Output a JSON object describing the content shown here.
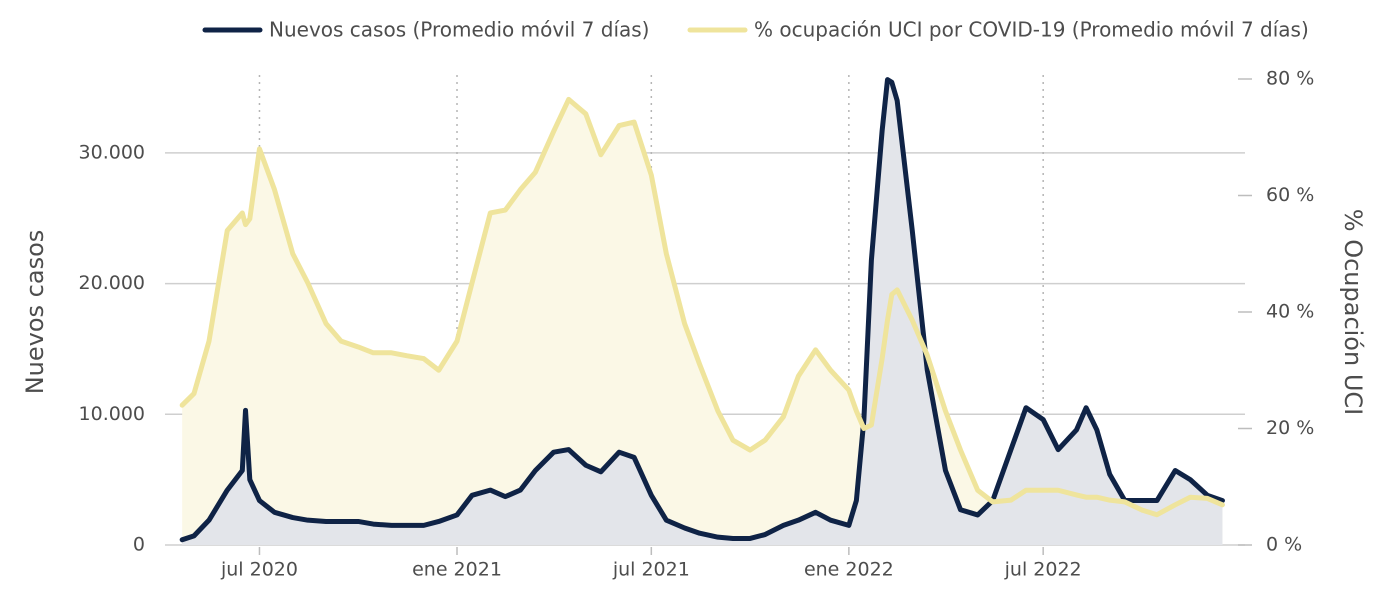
{
  "chart_data": {
    "type": "line",
    "ylabel": "Nuevos casos",
    "y2label": "% Ocupación UCI",
    "x": [
      "2020-04-20",
      "2020-05-01",
      "2020-05-15",
      "2020-06-01",
      "2020-06-15",
      "2020-06-18",
      "2020-06-22",
      "2020-07-01",
      "2020-07-15",
      "2020-08-01",
      "2020-08-15",
      "2020-09-01",
      "2020-09-15",
      "2020-10-01",
      "2020-10-15",
      "2020-11-01",
      "2020-11-15",
      "2020-12-01",
      "2020-12-15",
      "2021-01-01",
      "2021-01-15",
      "2021-02-01",
      "2021-02-15",
      "2021-03-01",
      "2021-03-15",
      "2021-04-01",
      "2021-04-15",
      "2021-05-01",
      "2021-05-15",
      "2021-06-01",
      "2021-06-15",
      "2021-07-01",
      "2021-07-15",
      "2021-08-01",
      "2021-08-15",
      "2021-09-01",
      "2021-09-15",
      "2021-10-01",
      "2021-10-15",
      "2021-11-01",
      "2021-11-15",
      "2021-12-01",
      "2021-12-15",
      "2022-01-01",
      "2022-01-08",
      "2022-01-15",
      "2022-01-22",
      "2022-02-01",
      "2022-02-06",
      "2022-02-10",
      "2022-02-15",
      "2022-03-01",
      "2022-03-15",
      "2022-04-01",
      "2022-04-15",
      "2022-05-01",
      "2022-05-15",
      "2022-06-01",
      "2022-06-15",
      "2022-07-01",
      "2022-07-15",
      "2022-08-01",
      "2022-08-10",
      "2022-08-20",
      "2022-09-01",
      "2022-09-15",
      "2022-10-01",
      "2022-10-15",
      "2022-11-01",
      "2022-11-15",
      "2022-12-01",
      "2022-12-15"
    ],
    "series": [
      {
        "name": "Nuevos casos (Promedio móvil 7 días)",
        "color": "#0f2346",
        "fill": "#e3e5ea",
        "values": [
          400,
          700,
          1900,
          4200,
          5700,
          10300,
          5000,
          3400,
          2500,
          2100,
          1900,
          1800,
          1800,
          1800,
          1600,
          1500,
          1500,
          1500,
          1800,
          2300,
          3800,
          4200,
          3700,
          4200,
          5700,
          7100,
          7300,
          6100,
          5600,
          7100,
          6700,
          3800,
          1900,
          1300,
          900,
          600,
          500,
          500,
          800,
          1500,
          1900,
          2500,
          1900,
          1500,
          3400,
          9600,
          21800,
          31700,
          35600,
          35400,
          34000,
          24100,
          13400,
          5700,
          2700,
          2300,
          3400,
          7300,
          10500,
          9600,
          7300,
          8800,
          10500,
          8800,
          5400,
          3400,
          3400,
          3400,
          5700,
          5000,
          3800,
          3400
        ]
      },
      {
        "name": "% ocupación UCI por COVID-19 (Promedio móvil 7 días)",
        "color": "#efe49c",
        "fill": "#fbf8e6",
        "axis": "y2",
        "values": [
          24,
          26,
          35,
          54,
          57,
          55,
          56,
          68,
          61,
          50,
          45,
          38,
          35,
          34,
          33,
          33,
          32.5,
          32,
          30,
          35,
          45,
          57,
          57.5,
          61,
          64,
          71,
          76.5,
          74,
          67,
          72,
          72.6,
          63.5,
          50,
          38,
          31,
          23,
          18,
          16.3,
          18,
          22,
          29,
          33.5,
          30,
          26.6,
          23,
          20,
          20.6,
          32,
          38.6,
          43,
          43.8,
          38.6,
          32.6,
          23,
          16.3,
          9.4,
          7.4,
          7.7,
          9.4,
          9.4,
          9.4,
          8.6,
          8.2,
          8.2,
          7.7,
          7.4,
          6,
          5.2,
          6.9,
          8.2,
          8,
          6.9
        ]
      }
    ],
    "xlim": [
      "2020-04-04",
      "2023-01-05"
    ],
    "xticks": [
      {
        "value": "2020-07-01",
        "label": "jul 2020"
      },
      {
        "value": "2021-01-01",
        "label": "ene 2021"
      },
      {
        "value": "2021-07-01",
        "label": "jul 2021"
      },
      {
        "value": "2022-01-01",
        "label": "ene 2022"
      },
      {
        "value": "2022-07-01",
        "label": "jul 2022"
      }
    ],
    "ylim": [
      0,
      35650
    ],
    "yticks": [
      0,
      {
        "value": 10000,
        "label": "10.000"
      },
      {
        "value": 20000,
        "label": "20.000"
      },
      {
        "value": 30000,
        "label": "30.000"
      }
    ],
    "y2lim": [
      0,
      80
    ],
    "y2ticks": [
      {
        "value": 0,
        "label": "0 %"
      },
      {
        "value": 20,
        "label": "20 %"
      },
      {
        "value": 40,
        "label": "40 %"
      },
      {
        "value": 60,
        "label": "60 %"
      },
      {
        "value": 80,
        "label": "80 %"
      }
    ],
    "grid": true
  }
}
